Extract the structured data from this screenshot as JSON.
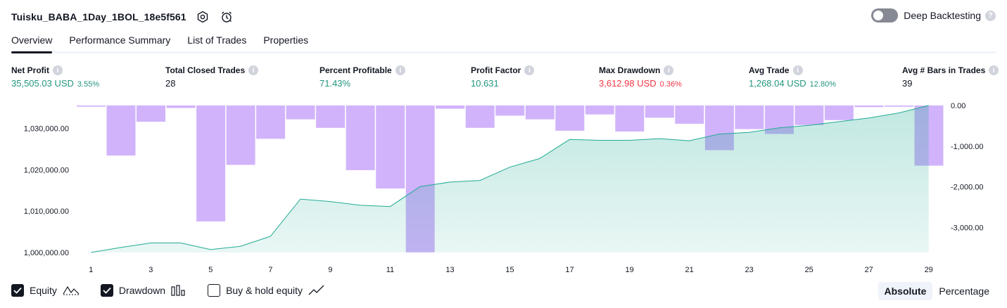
{
  "header": {
    "strategy_title": "Tuisku_BABA_1Day_1BOL_18e5f561",
    "settings_icon": "gear-icon",
    "alert_icon": "alarm-clock-icon",
    "deep_backtesting_label": "Deep Backtesting",
    "deep_backtesting_enabled": false,
    "help_mark": "?"
  },
  "tabs": [
    {
      "label": "Overview",
      "active": true
    },
    {
      "label": "Performance Summary",
      "active": false
    },
    {
      "label": "List of Trades",
      "active": false
    },
    {
      "label": "Properties",
      "active": false
    }
  ],
  "metrics": [
    {
      "label": "Net Profit",
      "value": "35,505.03 USD",
      "sub": "3.55%",
      "tone": "green"
    },
    {
      "label": "Total Closed Trades",
      "value": "28",
      "sub": "",
      "tone": "neutral"
    },
    {
      "label": "Percent Profitable",
      "value": "71.43%",
      "sub": "",
      "tone": "green"
    },
    {
      "label": "Profit Factor",
      "value": "10.631",
      "sub": "",
      "tone": "green"
    },
    {
      "label": "Max Drawdown",
      "value": "3,612.98 USD",
      "sub": "0.36%",
      "tone": "red"
    },
    {
      "label": "Avg Trade",
      "value": "1,268.04 USD",
      "sub": "12.80%",
      "tone": "green"
    },
    {
      "label": "Avg # Bars in Trades",
      "value": "39",
      "sub": "",
      "tone": "neutral"
    }
  ],
  "chart_data": {
    "type": "area",
    "x": [
      1,
      2,
      3,
      4,
      5,
      6,
      7,
      8,
      9,
      10,
      11,
      12,
      13,
      14,
      15,
      16,
      17,
      18,
      19,
      20,
      21,
      22,
      23,
      24,
      25,
      26,
      27,
      28,
      29
    ],
    "x_tick_labels": [
      "1",
      "3",
      "5",
      "7",
      "9",
      "11",
      "13",
      "15",
      "17",
      "19",
      "21",
      "23",
      "25",
      "27",
      "29"
    ],
    "series": [
      {
        "type": "area",
        "axis": "left",
        "color": "#22ab94",
        "values": [
          1000000,
          1001200,
          1002300,
          1002300,
          1000700,
          1001500,
          1003900,
          1012900,
          1012300,
          1011400,
          1011100,
          1015900,
          1017000,
          1017400,
          1020600,
          1022700,
          1027300,
          1027100,
          1027100,
          1027500,
          1027000,
          1028600,
          1029000,
          1030100,
          1030700,
          1031600,
          1032500,
          1033700,
          1035505
        ]
      },
      {
        "type": "bar",
        "axis": "right",
        "color": "#d1b3fb",
        "values": [
          -30,
          -1230,
          -400,
          -60,
          -2850,
          -1460,
          -820,
          -340,
          -550,
          -1590,
          -2040,
          -3610,
          -80,
          -550,
          -250,
          -340,
          -620,
          -220,
          -640,
          -300,
          -450,
          -1100,
          -580,
          -700,
          -480,
          -360,
          -40,
          -30,
          -1480
        ]
      }
    ],
    "left_axis": {
      "labels": [
        "1,000,000.00",
        "1,010,000.00",
        "1,020,000.00",
        "1,030,000.00"
      ],
      "ticks": [
        1000000,
        1010000,
        1020000,
        1030000
      ],
      "range": [
        1000000,
        1035505
      ]
    },
    "right_axis": {
      "labels": [
        "0.00",
        "-1,000.00",
        "-2,000.00",
        "-3,000.00"
      ],
      "ticks": [
        0,
        -1000,
        -2000,
        -3000
      ],
      "range": [
        -3612.98,
        0
      ]
    }
  },
  "legend": [
    {
      "label": "Equity",
      "checked": true,
      "icon": "equity-line-icon"
    },
    {
      "label": "Drawdown",
      "checked": true,
      "icon": "drawdown-bars-icon"
    },
    {
      "label": "Buy & hold equity",
      "checked": false,
      "icon": "buy-hold-line-icon"
    }
  ],
  "mode_switch": [
    {
      "label": "Absolute",
      "active": true
    },
    {
      "label": "Percentage",
      "active": false
    }
  ]
}
